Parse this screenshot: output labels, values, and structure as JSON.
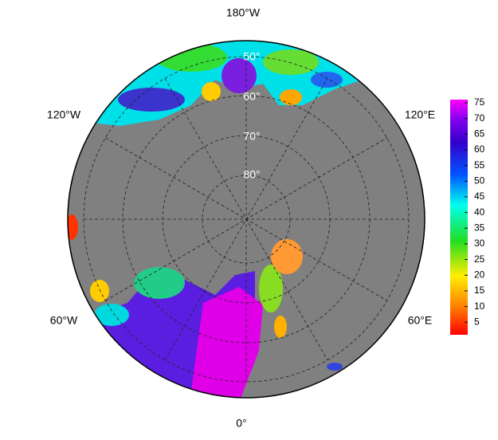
{
  "map": {
    "longitude_labels": [
      "180°W",
      "120°W",
      "120°E",
      "60°W",
      "60°E",
      "0°"
    ],
    "latitude_labels": [
      "50°",
      "60°",
      "70°",
      "80°"
    ]
  },
  "colorbar": {
    "lim": [
      1,
      76
    ],
    "ticks": [
      5,
      10,
      15,
      20,
      25,
      30,
      35,
      40,
      45,
      50,
      55,
      60,
      65,
      70,
      75
    ]
  }
}
